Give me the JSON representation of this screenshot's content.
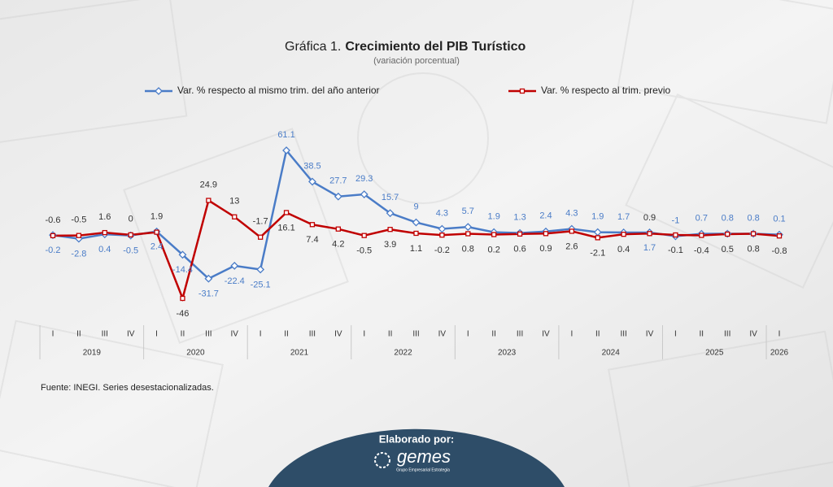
{
  "chart_data": {
    "type": "line",
    "title_number": "Gráfica 1.",
    "title": "Crecimiento del PIB Turístico",
    "subtitle": "(variación porcentual)",
    "categories": [
      "I",
      "II",
      "III",
      "IV",
      "I",
      "II",
      "III",
      "IV",
      "I",
      "II",
      "III",
      "IV",
      "I",
      "II",
      "III",
      "IV",
      "I",
      "II",
      "III",
      "IV",
      "I",
      "II",
      "III",
      "IV",
      "I",
      "II",
      "III",
      "IV",
      "I"
    ],
    "year_groups": [
      "2019",
      "2020",
      "2021",
      "2022",
      "2023",
      "2024",
      "2025",
      "2026"
    ],
    "series": [
      {
        "name": "Var. % respecto al mismo trim. del año anterior",
        "color": "#4a7cc7",
        "marker": "diamond",
        "values": [
          -0.2,
          -2.8,
          0.4,
          -0.5,
          2.4,
          -14.4,
          -31.7,
          -22.4,
          -25.1,
          61.1,
          38.5,
          27.7,
          29.3,
          15.7,
          9.0,
          4.3,
          5.7,
          1.9,
          1.3,
          2.4,
          4.3,
          1.9,
          1.7,
          1.7,
          -1.0,
          0.7,
          0.8,
          0.8,
          0.1
        ]
      },
      {
        "name": "Var. % respecto al trim. previo",
        "color": "#c00000",
        "marker": "square",
        "values": [
          -0.6,
          -0.5,
          1.6,
          0.0,
          1.9,
          -46.0,
          24.9,
          13.0,
          -1.7,
          16.1,
          7.4,
          4.2,
          -0.5,
          3.9,
          1.1,
          -0.2,
          0.8,
          0.2,
          0.6,
          0.9,
          2.6,
          -2.1,
          0.4,
          0.9,
          -0.1,
          -0.4,
          0.5,
          0.8,
          -0.8
        ]
      }
    ],
    "source": "Fuente: INEGI. Series desestacionalizadas."
  },
  "footer": {
    "label": "Elaborado por:",
    "logo": "gemes",
    "logo_subtitle": "Grupo Empresarial Estrategia"
  }
}
